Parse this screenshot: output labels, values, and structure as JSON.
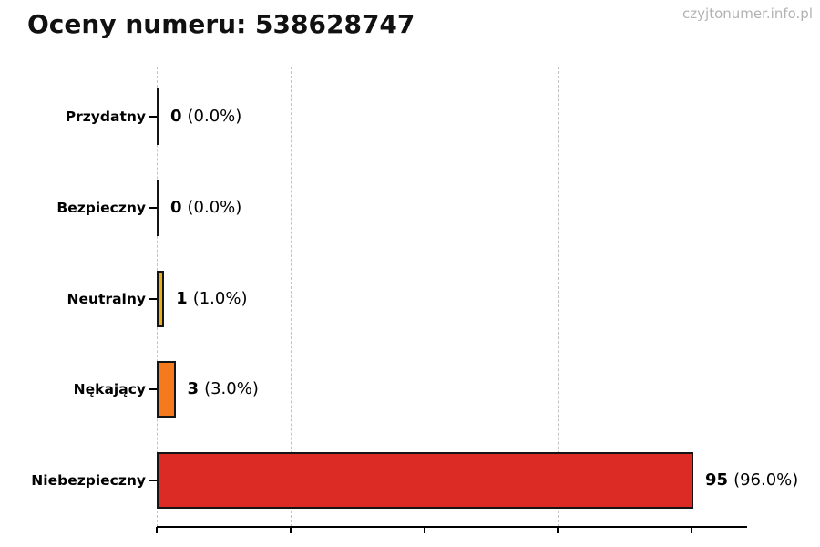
{
  "header": {
    "title": "Oceny numeru: 538628747",
    "watermark": "czyjtonumer.info.pl"
  },
  "chart_data": {
    "type": "bar",
    "orientation": "horizontal",
    "title": "Oceny numeru: 538628747",
    "categories": [
      "Przydatny",
      "Bezpieczny",
      "Neutralny",
      "Nękający",
      "Niebezpieczny"
    ],
    "values": [
      0,
      0,
      1,
      3,
      95
    ],
    "percentages": [
      0.0,
      0.0,
      1.0,
      3.0,
      96.0
    ],
    "xlim": [
      0,
      95
    ],
    "x_tick_count": 5,
    "x_tick_labels_visible": false,
    "grid": "vertical-dashed",
    "legend": "none",
    "bar_edge_color": "#151515",
    "gridline_color": "#c3c3c3",
    "rows": [
      {
        "label": "Przydatny",
        "value": 0,
        "value_text": "0",
        "percent_text": "(0.0%)",
        "color": null
      },
      {
        "label": "Bezpieczny",
        "value": 0,
        "value_text": "0",
        "percent_text": "(0.0%)",
        "color": null
      },
      {
        "label": "Neutralny",
        "value": 1,
        "value_text": "1",
        "percent_text": "(1.0%)",
        "color": "#e9ae1d"
      },
      {
        "label": "Nękający",
        "value": 3,
        "value_text": "3",
        "percent_text": "(3.0%)",
        "color": "#f57a1e"
      },
      {
        "label": "Niebezpieczny",
        "value": 95,
        "value_text": "95",
        "percent_text": "(96.0%)",
        "color": "#dc2a25"
      }
    ]
  }
}
